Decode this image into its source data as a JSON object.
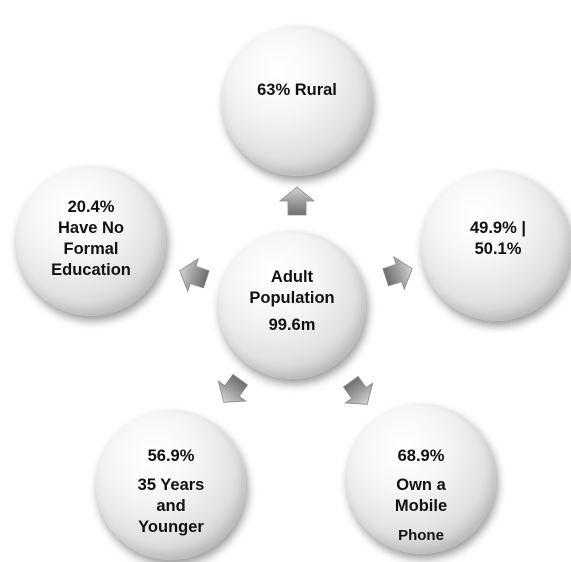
{
  "center": {
    "line1": "Adult",
    "line2": "Population",
    "line3": "99.6m"
  },
  "nodes": {
    "rural": {
      "text": "63% Rural"
    },
    "gender": {
      "line1": "49.9% |",
      "line2": "50.1%"
    },
    "mobile": {
      "line1": "68.9%",
      "line2": "Own a",
      "line3": "Mobile",
      "line4": "Phone"
    },
    "age": {
      "line1": "56.9%",
      "line2": "35 Years",
      "line3": "and",
      "line4": "Younger"
    },
    "education": {
      "line1": "20.4%",
      "line2": "Have No",
      "line3": "Formal",
      "line4": "Education"
    }
  }
}
